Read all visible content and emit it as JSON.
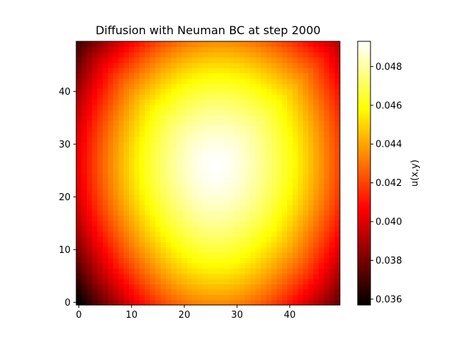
{
  "chart_data": {
    "type": "heatmap",
    "title": "Diffusion with Neuman BC at step 2000",
    "xlabel": "",
    "ylabel": "",
    "grid": false,
    "origin": "lower",
    "nx": 50,
    "ny": 50,
    "xlim": [
      -0.5,
      49.5
    ],
    "ylim": [
      -0.5,
      49.5
    ],
    "xticks": [
      0,
      10,
      20,
      30,
      40
    ],
    "yticks": [
      0,
      10,
      20,
      30,
      40
    ],
    "colormap": "hot",
    "colorbar": {
      "label": "u(x,y)",
      "vmin": 0.0357,
      "vmax": 0.0493,
      "ticks": [
        0.036,
        0.038,
        0.04,
        0.042,
        0.044,
        0.046,
        0.048
      ],
      "ticklabels": [
        "0.036",
        "0.038",
        "0.040",
        "0.042",
        "0.044",
        "0.046",
        "0.048"
      ]
    },
    "field_model": {
      "center": [
        26,
        26
      ],
      "center_value": 0.0493,
      "corner_values": {
        "bottom_left": 0.0357,
        "bottom_right": 0.0378,
        "top_left": 0.0371,
        "top_right": 0.0395
      },
      "edge_midpoint_values": {
        "bottom": 0.0435,
        "top": 0.0436,
        "left": 0.0403,
        "right": 0.0422
      }
    }
  }
}
